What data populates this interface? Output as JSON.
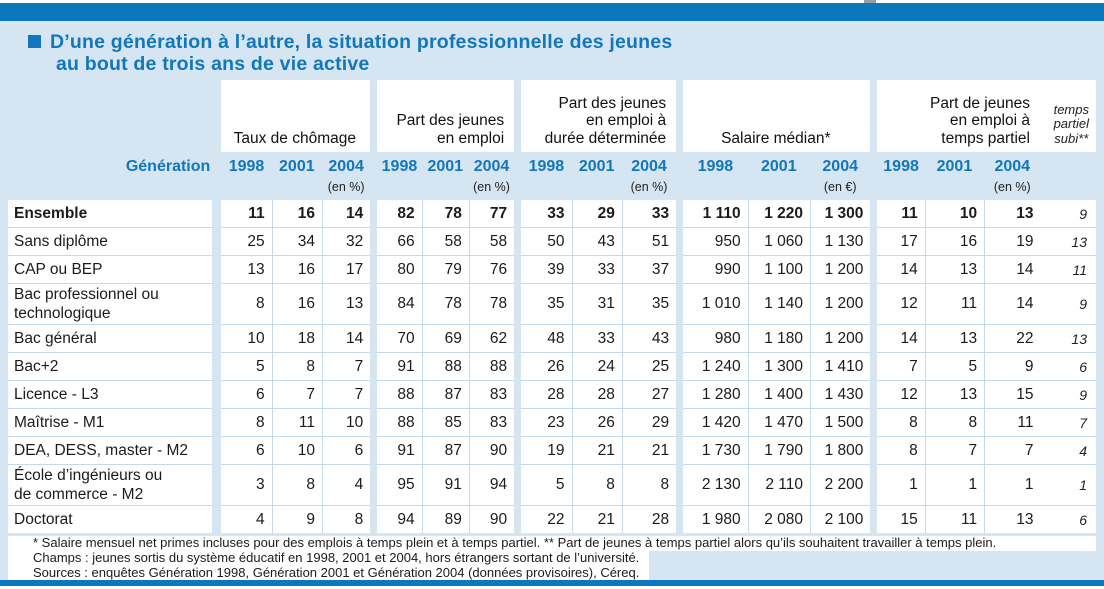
{
  "page": {
    "title_line1": "D’une génération à l’autre, la situation professionnelle des jeunes",
    "title_line2": "au bout de trois ans de vie active"
  },
  "colors": {
    "bar_blue": "#0b78bd",
    "panel_blue": "#d6e5f2",
    "accent_text_blue": "#1177bb"
  },
  "table": {
    "row_header_label": "Génération",
    "groups": [
      {
        "label": "Taux de chômage",
        "years": [
          "1998",
          "2001",
          "2004"
        ],
        "unit": "(en %)"
      },
      {
        "label": "Part des jeunes\nen emploi",
        "years": [
          "1998",
          "2001",
          "2004"
        ],
        "unit": "(en %)"
      },
      {
        "label": "Part des jeunes\nen emploi à\ndurée déterminée",
        "years": [
          "1998",
          "2001",
          "2004"
        ],
        "unit": "(en %)"
      },
      {
        "label": "Salaire médian*",
        "years": [
          "1998",
          "2001",
          "2004"
        ],
        "unit": "(en €)"
      },
      {
        "label": "Part de jeunes\nen emploi à\ntemps partiel",
        "years": [
          "1998",
          "2001",
          "2004"
        ],
        "unit": "(en %)"
      }
    ],
    "subi_header": "temps\npartiel\nsubi**",
    "rows": [
      {
        "label": "Ensemble",
        "bold": true,
        "values": [
          "11",
          "16",
          "14",
          "82",
          "78",
          "77",
          "33",
          "29",
          "33",
          "1 110",
          "1 220",
          "1 300",
          "11",
          "10",
          "13"
        ],
        "subi": "9"
      },
      {
        "label": "Sans diplôme",
        "values": [
          "25",
          "34",
          "32",
          "66",
          "58",
          "58",
          "50",
          "43",
          "51",
          "950",
          "1 060",
          "1 130",
          "17",
          "16",
          "19"
        ],
        "subi": "13"
      },
      {
        "label": "CAP ou BEP",
        "values": [
          "13",
          "16",
          "17",
          "80",
          "79",
          "76",
          "39",
          "33",
          "37",
          "990",
          "1 100",
          "1 200",
          "14",
          "13",
          "14"
        ],
        "subi": "11"
      },
      {
        "label": "Bac professionnel ou\ntechnologique",
        "values": [
          "8",
          "16",
          "13",
          "84",
          "78",
          "78",
          "35",
          "31",
          "35",
          "1 010",
          "1 140",
          "1 200",
          "12",
          "11",
          "14"
        ],
        "subi": "9"
      },
      {
        "label": "Bac général",
        "values": [
          "10",
          "18",
          "14",
          "70",
          "69",
          "62",
          "48",
          "33",
          "43",
          "980",
          "1 180",
          "1 200",
          "14",
          "13",
          "22"
        ],
        "subi": "13"
      },
      {
        "label": "Bac+2",
        "values": [
          "5",
          "8",
          "7",
          "91",
          "88",
          "88",
          "26",
          "24",
          "25",
          "1 240",
          "1 300",
          "1 410",
          "7",
          "5",
          "9"
        ],
        "subi": "6"
      },
      {
        "label": "Licence - L3",
        "values": [
          "6",
          "7",
          "7",
          "88",
          "87",
          "83",
          "28",
          "28",
          "27",
          "1 280",
          "1 400",
          "1 430",
          "12",
          "13",
          "15"
        ],
        "subi": "9"
      },
      {
        "label": "Maîtrise - M1",
        "values": [
          "8",
          "11",
          "10",
          "88",
          "85",
          "83",
          "23",
          "26",
          "29",
          "1 420",
          "1 470",
          "1 500",
          "8",
          "8",
          "11"
        ],
        "subi": "7"
      },
      {
        "label": "DEA, DESS, master - M2",
        "values": [
          "6",
          "10",
          "6",
          "91",
          "87",
          "90",
          "19",
          "21",
          "21",
          "1 730",
          "1 790",
          "1 800",
          "8",
          "7",
          "7"
        ],
        "subi": "4"
      },
      {
        "label": "École d’ingénieurs ou\nde commerce - M2",
        "values": [
          "3",
          "8",
          "4",
          "95",
          "91",
          "94",
          "5",
          "8",
          "8",
          "2 130",
          "2 110",
          "2 200",
          "1",
          "1",
          "1"
        ],
        "subi": "1"
      },
      {
        "label": "Doctorat",
        "values": [
          "4",
          "9",
          "8",
          "94",
          "89",
          "90",
          "22",
          "21",
          "28",
          "1 980",
          "2 080",
          "2 100",
          "15",
          "11",
          "13"
        ],
        "subi": "6"
      }
    ]
  },
  "footnotes": [
    "* Salaire mensuel net primes incluses pour des emplois à temps plein et à temps partiel. ** Part de jeunes à temps partiel alors qu’ils souhaitent travailler à temps plein.",
    "Champs : jeunes sortis du système éducatif en 1998, 2001 et 2004, hors étrangers sortant de l’université.",
    "Sources : enquêtes Génération 1998, Génération 2001 et Génération 2004 (données provisoires), Céreq."
  ]
}
